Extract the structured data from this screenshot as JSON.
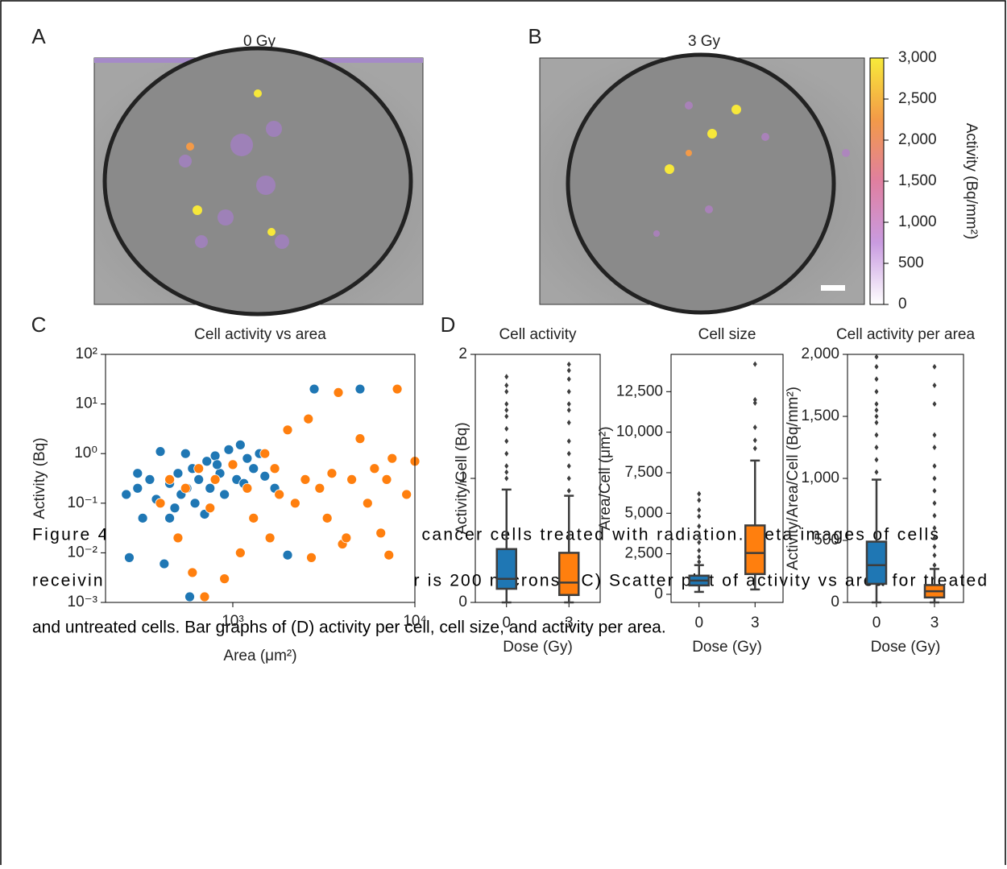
{
  "labels": {
    "a": "A",
    "b": "B",
    "c": "C",
    "d": "D"
  },
  "images": [
    {
      "title": "0 Gy"
    },
    {
      "title": "3 Gy"
    }
  ],
  "chart_data": [
    {
      "type": "colorbar",
      "label": "Activity (Bq/mm²)",
      "colors": [
        "#ffffff",
        "#c99be0",
        "#e07fa0",
        "#f39a48",
        "#f7ea3a"
      ],
      "ylim": [
        0,
        3000
      ],
      "yticks": [
        0,
        500,
        {
          "value": 1000,
          "label": "1,000"
        },
        {
          "value": 1500,
          "label": "1,500"
        },
        {
          "value": 2000,
          "label": "2,000"
        },
        {
          "value": 2500,
          "label": "2,500"
        },
        {
          "value": 3000,
          "label": "3,000"
        }
      ]
    },
    {
      "type": "scatter",
      "title": "Cell activity vs area",
      "x_label": "Area (μm²)",
      "y_label": "Activity (Bq)",
      "xscale": "log",
      "yscale": "log",
      "xlim": [
        200,
        10000
      ],
      "ylim": [
        0.001,
        100
      ],
      "xticks": [
        {
          "value": 1000,
          "label": "10³"
        },
        {
          "value": 10000,
          "label": "10⁴"
        }
      ],
      "yticks": [
        {
          "value": 0.001,
          "label": "10⁻³"
        },
        {
          "value": 0.01,
          "label": "10⁻²"
        },
        {
          "value": 0.1,
          "label": "10⁻¹"
        },
        {
          "value": 1,
          "label": "10⁰"
        },
        {
          "value": 10,
          "label": "10¹"
        },
        {
          "value": 100,
          "label": "10²"
        }
      ],
      "series": [
        {
          "color": "#1f77b4",
          "x": [
            260,
            270,
            300,
            320,
            350,
            380,
            400,
            420,
            450,
            480,
            500,
            520,
            550,
            580,
            600,
            620,
            650,
            700,
            720,
            750,
            800,
            850,
            900,
            950,
            1000,
            1050,
            1100,
            1200,
            1300,
            1400,
            1500,
            1700,
            2000,
            2800,
            5000,
            300,
            450,
            560,
            820,
            1150
          ],
          "values": [
            0.15,
            0.008,
            0.2,
            0.05,
            0.3,
            0.12,
            1.1,
            0.006,
            0.25,
            0.08,
            0.4,
            0.15,
            1.0,
            0.0013,
            0.5,
            0.1,
            0.3,
            0.06,
            0.7,
            0.2,
            0.9,
            0.4,
            0.15,
            1.2,
            0.6,
            0.3,
            1.5,
            0.8,
            0.5,
            1.0,
            0.35,
            0.2,
            0.009,
            20,
            20,
            0.4,
            0.05,
            0.2,
            0.6,
            0.25
          ]
        },
        {
          "color": "#ff7f0e",
          "x": [
            400,
            450,
            500,
            550,
            600,
            650,
            700,
            750,
            800,
            900,
            1000,
            1100,
            1200,
            1300,
            1500,
            1600,
            1800,
            2000,
            2200,
            2500,
            2700,
            3000,
            3300,
            3500,
            4000,
            4500,
            5000,
            5500,
            6000,
            6500,
            7000,
            7500,
            8000,
            9000,
            10000,
            2600,
            3800,
            4200,
            7200,
            1700
          ],
          "values": [
            0.1,
            0.3,
            0.02,
            0.2,
            0.004,
            0.5,
            0.0013,
            0.08,
            0.3,
            0.003,
            0.6,
            0.01,
            0.2,
            0.05,
            1.0,
            0.02,
            0.15,
            3.0,
            0.1,
            0.3,
            0.008,
            0.2,
            0.05,
            0.4,
            0.015,
            0.3,
            2.0,
            0.1,
            0.5,
            0.025,
            0.3,
            0.8,
            20,
            0.15,
            0.7,
            5,
            17,
            0.02,
            0.009,
            0.5
          ]
        }
      ]
    },
    {
      "type": "box",
      "title": "Cell activity",
      "x_label": "Dose (Gy)",
      "y_label": "Activity/Cell (Bq)",
      "categories": [
        "0",
        "3"
      ],
      "ylim": [
        0,
        2
      ],
      "yticks": [
        0,
        1,
        2
      ],
      "boxes": [
        {
          "color": "#1f77b4",
          "whislo": 0,
          "q1": 0.11,
          "med": 0.19,
          "q3": 0.43,
          "whishi": 0.91,
          "fliers": [
            1.0,
            1.05,
            1.1,
            1.2,
            1.3,
            1.4,
            1.5,
            1.55,
            1.6,
            1.7,
            1.75,
            1.82
          ]
        },
        {
          "color": "#ff7f0e",
          "whislo": 0,
          "q1": 0.06,
          "med": 0.16,
          "q3": 0.4,
          "whishi": 0.86,
          "fliers": [
            0.9,
            1.0,
            1.1,
            1.2,
            1.3,
            1.45,
            1.55,
            1.6,
            1.7,
            1.8,
            1.87,
            1.92
          ]
        }
      ]
    },
    {
      "type": "box",
      "title": "Cell size",
      "x_label": "Dose (Gy)",
      "y_label": "Area/Cell (μm²)",
      "categories": [
        "0",
        "3"
      ],
      "ylim": [
        -500,
        14800
      ],
      "yticks": [
        0,
        {
          "value": 2500,
          "label": "2,500"
        },
        {
          "value": 5000,
          "label": "5,000"
        },
        {
          "value": 7500,
          "label": "7,500"
        },
        {
          "value": 10000,
          "label": "10,000"
        },
        {
          "value": 12500,
          "label": "12,500"
        }
      ],
      "boxes": [
        {
          "color": "#1f77b4",
          "whislo": 150,
          "q1": 550,
          "med": 850,
          "q3": 1150,
          "whishi": 1800,
          "fliers": [
            2000,
            2300,
            2700,
            3200,
            3600,
            4200,
            4800,
            5200,
            5800,
            6200
          ]
        },
        {
          "color": "#ff7f0e",
          "whislo": 300,
          "q1": 1250,
          "med": 2550,
          "q3": 4250,
          "whishi": 8250,
          "fliers": [
            9000,
            9500,
            10300,
            11800,
            12000,
            14200
          ]
        }
      ]
    },
    {
      "type": "box",
      "title": "Cell activity per area",
      "x_label": "Dose (Gy)",
      "y_label": "Activity/Area/Cell (Bq/mm²)",
      "categories": [
        "0",
        "3"
      ],
      "ylim": [
        0,
        2000
      ],
      "yticks": [
        0,
        500,
        {
          "value": 1000,
          "label": "1,000"
        },
        {
          "value": 1500,
          "label": "1,500"
        },
        {
          "value": 2000,
          "label": "2,000"
        }
      ],
      "boxes": [
        {
          "color": "#1f77b4",
          "whislo": 0,
          "q1": 150,
          "med": 300,
          "q3": 490,
          "whishi": 990,
          "fliers": [
            1050,
            1150,
            1250,
            1350,
            1450,
            1500,
            1550,
            1600,
            1700,
            1800,
            1900,
            1980
          ]
        },
        {
          "color": "#ff7f0e",
          "whislo": 0,
          "q1": 40,
          "med": 90,
          "q3": 140,
          "whishi": 270,
          "fliers": [
            300,
            380,
            450,
            520,
            600,
            700,
            800,
            900,
            1000,
            1100,
            1250,
            1350,
            1600,
            1750,
            1900
          ]
        }
      ]
    }
  ],
  "caption": [
    "Figure 4: ¹⁸F-FDG beta imaging of breast cancer cells treated with radiation. Beta images of cells",
    "receiving (A) 0 Gy and (B) 3 Gy. Scale bar is 200 microns. (C) Scatter plot of activity vs area for treated",
    "and untreated cells. Bar graphs of (D) activity per cell, cell size, and activity per area."
  ]
}
